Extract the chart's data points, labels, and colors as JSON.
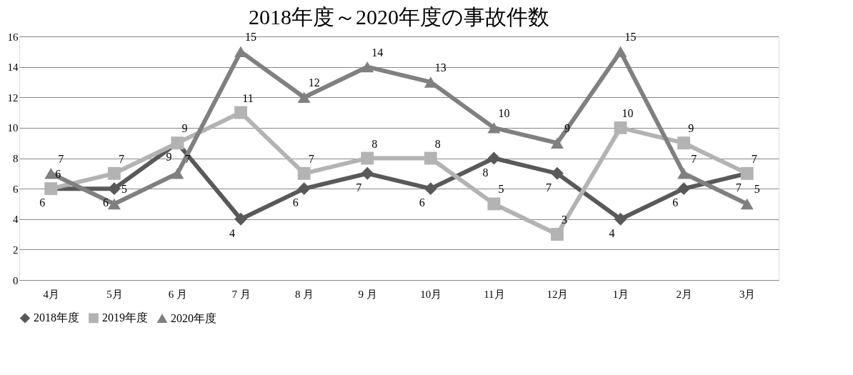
{
  "chart_data": {
    "type": "line",
    "title": "2018年度～2020年度の事故件数",
    "categories": [
      "4月",
      "5月",
      "6 月",
      "7 月",
      "8 月",
      "9 月",
      "10月",
      "11月",
      "12月",
      "1月",
      "2月",
      "3月"
    ],
    "series": [
      {
        "name": "2018年度",
        "color": "#595959",
        "marker": "diamond",
        "values": [
          6,
          6,
          9,
          4,
          6,
          7,
          6,
          8,
          7,
          4,
          6,
          7
        ]
      },
      {
        "name": "2019年度",
        "color": "#b3b3b3",
        "marker": "square",
        "values": [
          6,
          7,
          9,
          11,
          7,
          8,
          8,
          5,
          3,
          10,
          9,
          7
        ]
      },
      {
        "name": "2020年度",
        "color": "#808080",
        "marker": "triangle",
        "values": [
          7,
          5,
          7,
          15,
          12,
          14,
          13,
          10,
          9,
          15,
          7,
          5
        ]
      }
    ],
    "ylim": [
      0,
      16
    ],
    "yticks": [
      0,
      2,
      4,
      6,
      8,
      10,
      12,
      14,
      16
    ],
    "grid": "y",
    "legend": "bottom",
    "data_labels": true,
    "line_style": "solid"
  }
}
